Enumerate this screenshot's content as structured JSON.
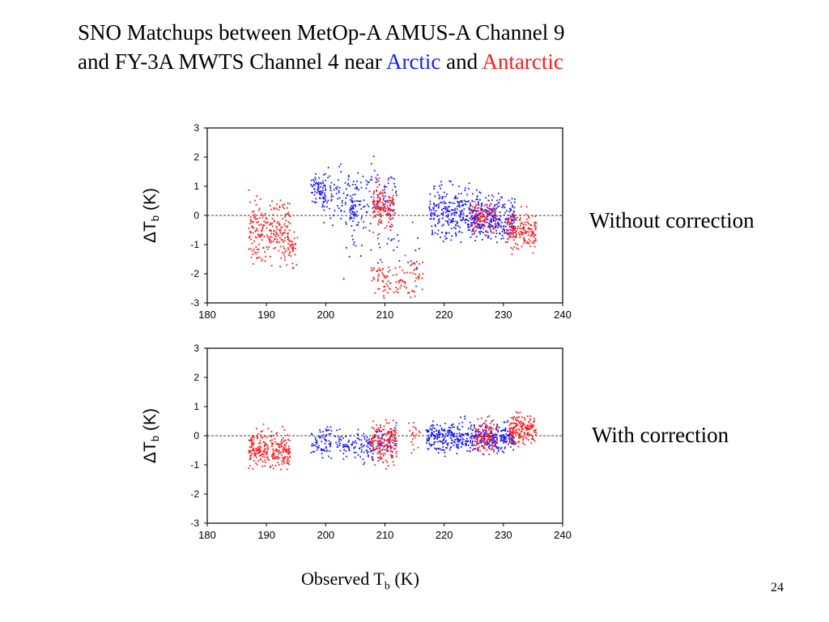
{
  "title": {
    "line1": "SNO Matchups between MetOp-A AMUS-A Channel 9",
    "line2_prefix": "and FY-3A MWTS Channel 4 near ",
    "arctic_word": "Arctic",
    "and_word": " and ",
    "antarctic_word": "Antarctic"
  },
  "colors": {
    "arctic": "#1a1aff",
    "antarctic": "#ff1a1a"
  },
  "labels": {
    "top_panel": "Without correction",
    "bottom_panel": "With correction",
    "x_axis_main": "Observed T",
    "x_axis_sub": "b",
    "x_axis_unit": " (K)",
    "page_number": "24"
  },
  "chart_data": [
    {
      "type": "scatter",
      "panel": "Without correction",
      "xlim": [
        180,
        240
      ],
      "ylim": [
        -3,
        3
      ],
      "x_ticks": [
        180,
        190,
        200,
        210,
        220,
        230,
        240
      ],
      "y_ticks": [
        3,
        2,
        1,
        0,
        -1,
        -2,
        -3
      ],
      "ylabel": {
        "main": "ΔT",
        "sub": "b",
        "unit": " (K)"
      },
      "reference_line": 0,
      "grid": false,
      "series": [
        {
          "color": "#1a1aff",
          "clusters": [
            {
              "x_range": [
                197.5,
                200
              ],
              "y_center": 0.85,
              "y_spread": 0.25,
              "n": 70
            },
            {
              "x_range": [
                199.5,
                206
              ],
              "y_center": 0.7,
              "y_spread": 0.45,
              "n": 110
            },
            {
              "x_range": [
                204,
                205
              ],
              "y_center": 0.1,
              "y_spread": 0.3,
              "n": 30
            },
            {
              "x_range": [
                206,
                212
              ],
              "y_center": 0.7,
              "y_spread": 0.5,
              "n": 80
            },
            {
              "x_range": [
                203,
                216
              ],
              "y_center": -0.9,
              "y_spread": 0.6,
              "n": 45
            },
            {
              "x_range": [
                217.5,
                226
              ],
              "y_center": 0.05,
              "y_spread": 0.45,
              "n": 320
            },
            {
              "x_range": [
                226,
                232
              ],
              "y_center": -0.1,
              "y_spread": 0.35,
              "n": 220
            }
          ]
        },
        {
          "color": "#ff1a1a",
          "clusters": [
            {
              "x_range": [
                187,
                194
              ],
              "y_center": -0.5,
              "y_spread": 0.6,
              "n": 240
            },
            {
              "x_range": [
                194,
                195.5
              ],
              "y_center": -1.2,
              "y_spread": 0.3,
              "n": 25
            },
            {
              "x_range": [
                208,
                211.5
              ],
              "y_center": 0.25,
              "y_spread": 0.35,
              "n": 140
            },
            {
              "x_range": [
                207.5,
                216.5
              ],
              "y_center": -2.1,
              "y_spread": 0.3,
              "n": 110
            },
            {
              "x_range": [
                224.5,
                229
              ],
              "y_center": -0.1,
              "y_spread": 0.3,
              "n": 110
            },
            {
              "x_range": [
                230.5,
                235.5
              ],
              "y_center": -0.55,
              "y_spread": 0.3,
              "n": 170
            }
          ]
        }
      ]
    },
    {
      "type": "scatter",
      "panel": "With correction",
      "xlim": [
        180,
        240
      ],
      "ylim": [
        -3,
        3
      ],
      "x_ticks": [
        180,
        190,
        200,
        210,
        220,
        230,
        240
      ],
      "y_ticks": [
        3,
        2,
        1,
        0,
        -1,
        -2,
        -3
      ],
      "ylabel": {
        "main": "ΔT",
        "sub": "b",
        "unit": " (K)"
      },
      "reference_line": 0,
      "grid": false,
      "series": [
        {
          "color": "#1a1aff",
          "clusters": [
            {
              "x_range": [
                197.5,
                203
              ],
              "y_center": -0.2,
              "y_spread": 0.25,
              "n": 90
            },
            {
              "x_range": [
                203,
                208
              ],
              "y_center": -0.35,
              "y_spread": 0.25,
              "n": 90
            },
            {
              "x_range": [
                208,
                212
              ],
              "y_center": -0.25,
              "y_spread": 0.3,
              "n": 60
            },
            {
              "x_range": [
                217,
                226
              ],
              "y_center": -0.05,
              "y_spread": 0.25,
              "n": 280
            },
            {
              "x_range": [
                226,
                232
              ],
              "y_center": -0.05,
              "y_spread": 0.25,
              "n": 220
            }
          ]
        },
        {
          "color": "#ff1a1a",
          "clusters": [
            {
              "x_range": [
                187,
                194
              ],
              "y_center": -0.5,
              "y_spread": 0.3,
              "n": 260
            },
            {
              "x_range": [
                207.5,
                212
              ],
              "y_center": -0.2,
              "y_spread": 0.35,
              "n": 160
            },
            {
              "x_range": [
                214,
                216
              ],
              "y_center": 0.0,
              "y_spread": 0.3,
              "n": 20
            },
            {
              "x_range": [
                225,
                229
              ],
              "y_center": 0.0,
              "y_spread": 0.3,
              "n": 110
            },
            {
              "x_range": [
                231,
                235.5
              ],
              "y_center": 0.2,
              "y_spread": 0.25,
              "n": 170
            }
          ]
        }
      ]
    }
  ]
}
